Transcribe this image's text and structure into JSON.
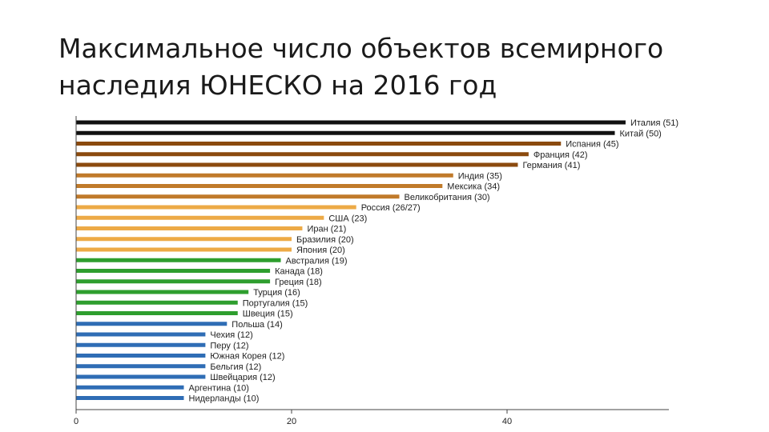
{
  "title_line1": "Максимальное число объектов всемирного",
  "title_line2": "наследия ЮНЕСКО на 2016 год",
  "chart_data": {
    "type": "bar",
    "orientation": "horizontal",
    "title": "Максимальное число объектов всемирного наследия ЮНЕСКО на 2016 год",
    "xlabel": "",
    "ylabel": "",
    "xlim": [
      0,
      55
    ],
    "xticks": [
      0,
      20,
      40
    ],
    "grid": false,
    "legend": "none",
    "bars": [
      {
        "label": "Италия (51)",
        "value": 51,
        "color": "#111111"
      },
      {
        "label": "Китай (50)",
        "value": 50,
        "color": "#111111"
      },
      {
        "label": "Испания (45)",
        "value": 45,
        "color": "#8B4A0E"
      },
      {
        "label": "Франция (42)",
        "value": 42,
        "color": "#8B4A0E"
      },
      {
        "label": "Германия (41)",
        "value": 41,
        "color": "#8B4A0E"
      },
      {
        "label": "Индия (35)",
        "value": 35,
        "color": "#C07A2A"
      },
      {
        "label": "Мексика (34)",
        "value": 34,
        "color": "#C07A2A"
      },
      {
        "label": "Великобритания (30)",
        "value": 30,
        "color": "#C07A2A"
      },
      {
        "label": "Россия (26/27)",
        "value": 26,
        "color": "#EDAA46"
      },
      {
        "label": "США (23)",
        "value": 23,
        "color": "#EDAA46"
      },
      {
        "label": "Иран (21)",
        "value": 21,
        "color": "#EDAA46"
      },
      {
        "label": "Бразилия (20)",
        "value": 20,
        "color": "#EDAA46"
      },
      {
        "label": "Япония (20)",
        "value": 20,
        "color": "#EDAA46"
      },
      {
        "label": "Австралия (19)",
        "value": 19,
        "color": "#2E9E2E"
      },
      {
        "label": "Канада (18)",
        "value": 18,
        "color": "#2E9E2E"
      },
      {
        "label": "Греция (18)",
        "value": 18,
        "color": "#2E9E2E"
      },
      {
        "label": "Турция (16)",
        "value": 16,
        "color": "#2E9E2E"
      },
      {
        "label": "Португалия (15)",
        "value": 15,
        "color": "#2E9E2E"
      },
      {
        "label": "Швеция (15)",
        "value": 15,
        "color": "#2E9E2E"
      },
      {
        "label": "Польша (14)",
        "value": 14,
        "color": "#2F6DB5"
      },
      {
        "label": "Чехия (12)",
        "value": 12,
        "color": "#2F6DB5"
      },
      {
        "label": "Перу (12)",
        "value": 12,
        "color": "#2F6DB5"
      },
      {
        "label": "Южная Корея (12)",
        "value": 12,
        "color": "#2F6DB5"
      },
      {
        "label": "Бельгия (12)",
        "value": 12,
        "color": "#2F6DB5"
      },
      {
        "label": "Швейцария (12)",
        "value": 12,
        "color": "#2F6DB5"
      },
      {
        "label": "Аргентина (10)",
        "value": 10,
        "color": "#2F6DB5"
      },
      {
        "label": "Нидерланды (10)",
        "value": 10,
        "color": "#2F6DB5"
      }
    ]
  }
}
